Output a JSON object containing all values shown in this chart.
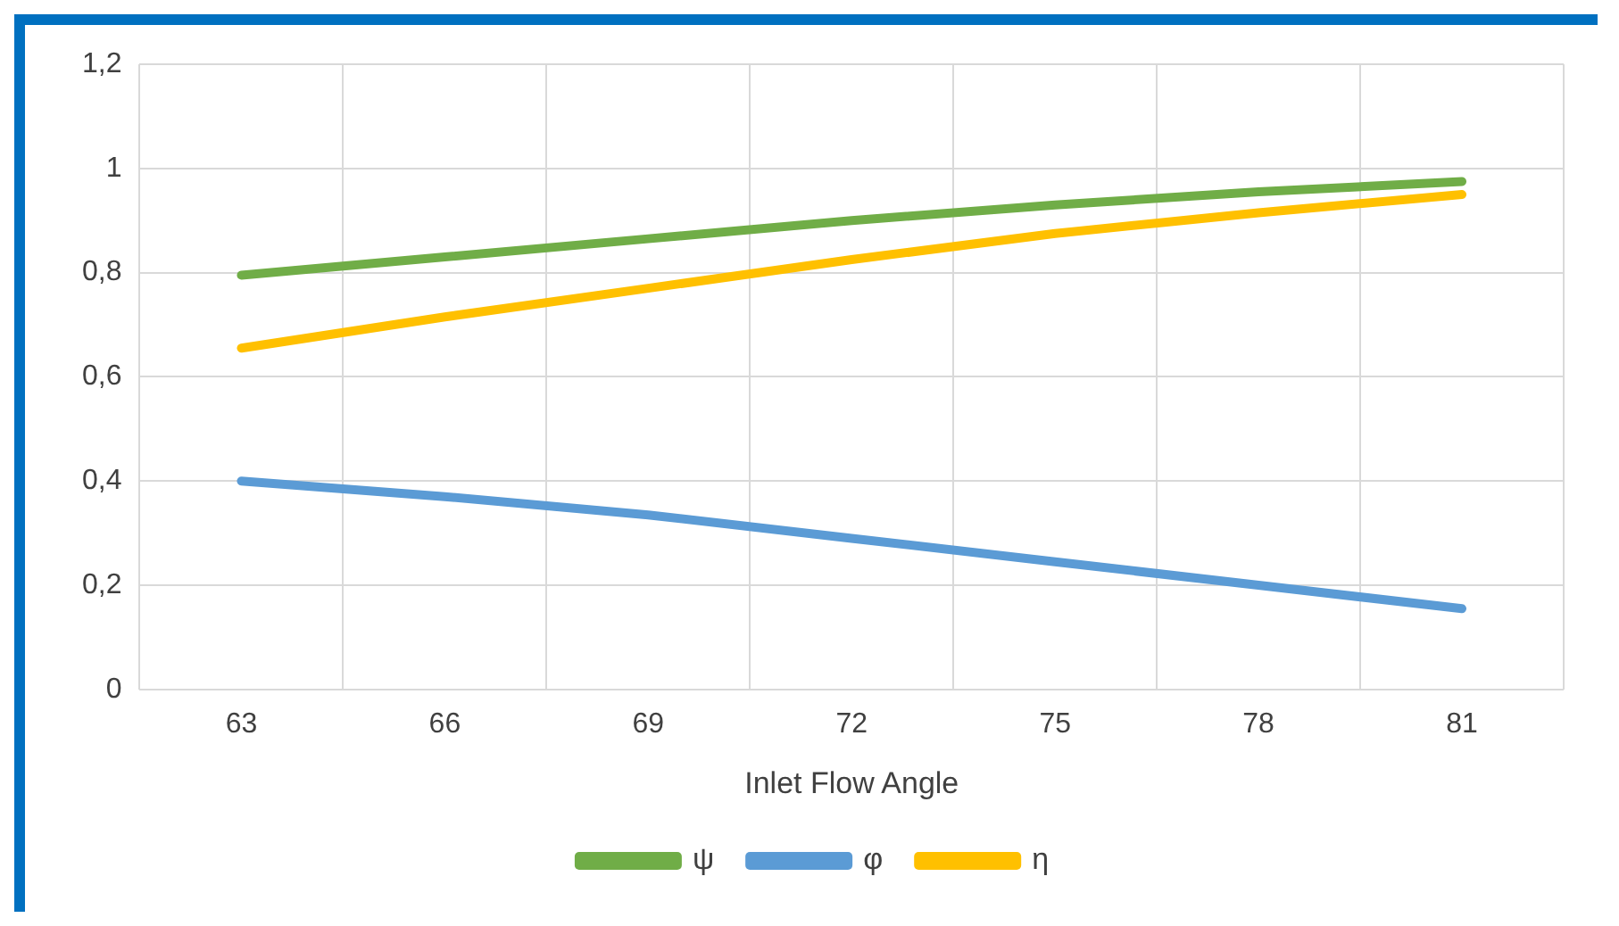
{
  "chart_data": {
    "type": "line",
    "xlabel": "Inlet Flow Angle",
    "categories": [
      "63",
      "66",
      "69",
      "72",
      "75",
      "78",
      "81"
    ],
    "series": [
      {
        "name": "ψ",
        "color": "#70ad47",
        "values": [
          0.795,
          0.83,
          0.865,
          0.9,
          0.93,
          0.955,
          0.975
        ]
      },
      {
        "name": "φ",
        "color": "#5b9bd5",
        "values": [
          0.4,
          0.37,
          0.335,
          0.29,
          0.245,
          0.2,
          0.155
        ]
      },
      {
        "name": "η",
        "color": "#ffc000",
        "values": [
          0.655,
          0.715,
          0.77,
          0.825,
          0.875,
          0.915,
          0.95
        ]
      }
    ],
    "ylim": [
      0,
      1.2
    ],
    "yticks": [
      0,
      {
        "value": 0.2,
        "label": "0,2"
      },
      {
        "value": 0.4,
        "label": "0,4"
      },
      {
        "value": 0.6,
        "label": "0,6"
      },
      {
        "value": 0.8,
        "label": "0,8"
      },
      1,
      {
        "value": 1.2,
        "label": "1,2"
      }
    ],
    "grid": true,
    "legend": "bottom",
    "marker": "none",
    "line_style": "solid"
  }
}
